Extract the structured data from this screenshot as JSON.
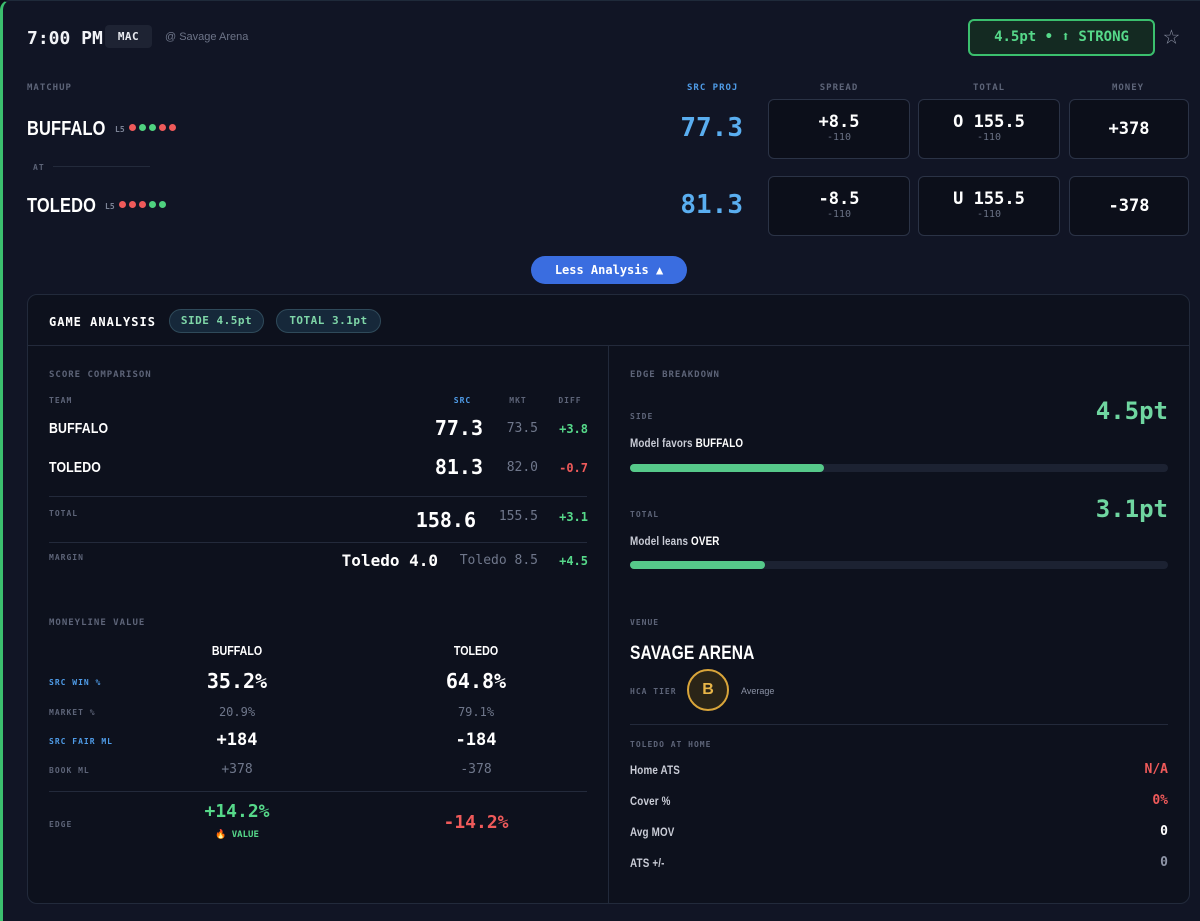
{
  "header": {
    "time": "7:00 PM",
    "conference": "MAC",
    "venue": "@ Savage Arena",
    "edge_badge": "4.5pt • ⬆ STRONG",
    "favorite_icon": "star-icon"
  },
  "columns": {
    "matchup": "MATCHUP",
    "proj": "SRC PROJ",
    "spread": "SPREAD",
    "total": "TOTAL",
    "money": "MONEY",
    "at": "AT"
  },
  "teams": [
    {
      "name": "BUFFALO",
      "l5_label": "L5",
      "form": [
        "L",
        "W",
        "W",
        "L",
        "L"
      ],
      "proj": "77.3",
      "spread": "+8.5",
      "spread_odds": "-110",
      "total": "O 155.5",
      "total_odds": "-110",
      "money": "+378"
    },
    {
      "name": "TOLEDO",
      "l5_label": "L5",
      "form": [
        "L",
        "L",
        "L",
        "W",
        "W"
      ],
      "proj": "81.3",
      "spread": "-8.5",
      "spread_odds": "-110",
      "total": "U 155.5",
      "total_odds": "-110",
      "money": "-378"
    }
  ],
  "toggle_label": "Less Analysis ▲",
  "analysis": {
    "title": "GAME ANALYSIS",
    "pill_side": "SIDE 4.5pt",
    "pill_total": "TOTAL 3.1pt",
    "score_comparison": {
      "heading": "SCORE COMPARISON",
      "col_team": "TEAM",
      "col_src": "SRC",
      "col_mkt": "MKT",
      "col_diff": "DIFF",
      "rows": [
        {
          "team": "BUFFALO",
          "src": "77.3",
          "mkt": "73.5",
          "diff": "+3.8"
        },
        {
          "team": "TOLEDO",
          "src": "81.3",
          "mkt": "82.0",
          "diff": "-0.7"
        }
      ],
      "total_label": "TOTAL",
      "total_src": "158.6",
      "total_mkt": "155.5",
      "total_diff": "+3.1",
      "margin_label": "MARGIN",
      "margin_src": "Toledo 4.0",
      "margin_mkt": "Toledo 8.5",
      "margin_diff": "+4.5"
    },
    "moneyline": {
      "heading": "MONEYLINE VALUE",
      "team1": "BUFFALO",
      "team2": "TOLEDO",
      "win_label": "SRC WIN %",
      "win1": "35.2%",
      "win2": "64.8%",
      "market_label": "MARKET %",
      "market1": "20.9%",
      "market2": "79.1%",
      "fair_label": "SRC FAIR ML",
      "fair1": "+184",
      "fair2": "-184",
      "book_label": "BOOK ML",
      "book1": "+378",
      "book2": "-378",
      "edge_label": "EDGE",
      "edge1": "+14.2%",
      "edge2": "-14.2%",
      "value_tag": "🔥 VALUE"
    },
    "edge_breakdown": {
      "heading": "EDGE BREAKDOWN",
      "side_label": "SIDE",
      "side_value": "4.5pt",
      "side_text": "Model favors",
      "side_team": "BUFFALO",
      "side_fill": 0.36,
      "total_label": "TOTAL",
      "total_value": "3.1pt",
      "total_text": "Model leans",
      "total_pick": "OVER",
      "total_fill": 0.25
    },
    "venue": {
      "heading": "VENUE",
      "name": "SAVAGE ARENA",
      "hca_label": "HCA TIER",
      "grade": "B",
      "grade_text": "Average"
    },
    "home": {
      "heading": "TOLEDO AT HOME",
      "rows": [
        {
          "label": "Home ATS",
          "value": "N/A",
          "color": "#ef5a5a"
        },
        {
          "label": "Cover %",
          "value": "0%",
          "color": "#ef5a5a"
        },
        {
          "label": "Avg MOV",
          "value": "0",
          "color": "#ffffff"
        },
        {
          "label": "ATS +/-",
          "value": "0",
          "color": "#8f96a8"
        }
      ]
    }
  }
}
